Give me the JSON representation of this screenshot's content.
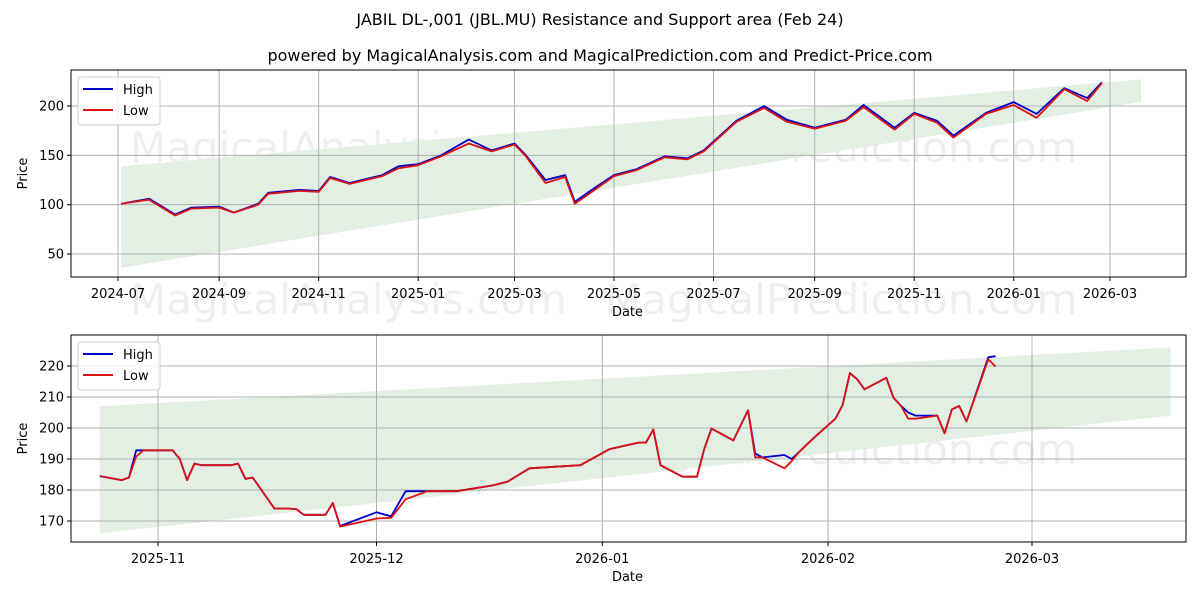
{
  "header": {
    "title": "JABIL DL-,001 (JBL.MU) Resistance and Support area (Feb 24)",
    "subtitle": "powered by MagicalAnalysis.com and MagicalPrediction.com and Predict-Price.com"
  },
  "watermarks": [
    "MagicalAnalysis.com",
    "MagicalPrediction.com"
  ],
  "colors": {
    "high": "#0000cc",
    "low": "#dd1111",
    "band": "#e3efe3",
    "grid": "#b0b0b0"
  },
  "chart_data": [
    {
      "type": "line",
      "title": "Full history",
      "xlabel": "Date",
      "ylabel": "Price",
      "ylim": [
        26,
        235
      ],
      "yticks": [
        50,
        100,
        150,
        200
      ],
      "xticks": [
        "2024-07",
        "2024-09",
        "2024-11",
        "2025-01",
        "2025-03",
        "2025-05",
        "2025-07",
        "2025-09",
        "2025-11",
        "2026-01",
        "2026-03"
      ],
      "grid": true,
      "legend": {
        "position": "upper left",
        "entries": [
          "High",
          "Low"
        ]
      },
      "band": {
        "start": {
          "date": "2024-07-03",
          "lower": 36,
          "upper": 139
        },
        "end": {
          "date": "2026-03-20",
          "lower": 204,
          "upper": 227
        }
      },
      "x": [
        "2024-07-03",
        "2024-07-20",
        "2024-08-05",
        "2024-08-15",
        "2024-09-01",
        "2024-09-10",
        "2024-09-25",
        "2024-10-01",
        "2024-10-20",
        "2024-11-01",
        "2024-11-08",
        "2024-11-20",
        "2024-12-10",
        "2024-12-20",
        "2025-01-01",
        "2025-01-15",
        "2025-02-01",
        "2025-02-15",
        "2025-03-01",
        "2025-03-08",
        "2025-03-20",
        "2025-04-01",
        "2025-04-07",
        "2025-04-20",
        "2025-05-01",
        "2025-05-15",
        "2025-06-01",
        "2025-06-15",
        "2025-06-25",
        "2025-07-15",
        "2025-08-01",
        "2025-08-15",
        "2025-09-01",
        "2025-09-20",
        "2025-10-01",
        "2025-10-20",
        "2025-11-01",
        "2025-11-15",
        "2025-11-25",
        "2025-12-15",
        "2026-01-01",
        "2026-01-15",
        "2026-02-01",
        "2026-02-15",
        "2026-02-24"
      ],
      "series": [
        {
          "name": "High",
          "values": [
            101,
            106,
            90,
            97,
            98,
            92,
            101,
            112,
            115,
            114,
            128,
            122,
            130,
            139,
            141,
            150,
            166,
            155,
            162,
            150,
            125,
            130,
            103,
            118,
            130,
            136,
            149,
            147,
            155,
            185,
            200,
            186,
            178,
            186,
            201,
            178,
            193,
            185,
            170,
            193,
            204,
            192,
            218,
            208,
            224
          ]
        },
        {
          "name": "Low",
          "values": [
            101,
            105,
            89,
            96,
            97,
            92,
            100,
            111,
            114,
            113,
            127,
            121,
            129,
            137,
            140,
            149,
            162,
            154,
            161,
            149,
            122,
            128,
            101,
            116,
            129,
            135,
            148,
            146,
            154,
            184,
            198,
            184,
            177,
            185,
            199,
            176,
            192,
            183,
            168,
            192,
            201,
            188,
            217,
            205,
            223
          ]
        }
      ]
    },
    {
      "type": "line",
      "title": "Recent zoom",
      "xlabel": "Date",
      "ylabel": "Price",
      "ylim": [
        163,
        230
      ],
      "yticks": [
        170,
        180,
        190,
        200,
        210,
        220
      ],
      "xticks": [
        "2025-11",
        "2025-12",
        "2026-01",
        "2026-02",
        "2026-03"
      ],
      "grid": true,
      "legend": {
        "position": "upper left",
        "entries": [
          "High",
          "Low"
        ]
      },
      "band": {
        "start": {
          "date": "2025-10-24",
          "lower": 166,
          "upper": 207
        },
        "end": {
          "date": "2026-03-20",
          "lower": 204,
          "upper": 226
        }
      },
      "x": [
        "2025-10-24",
        "2025-10-27",
        "2025-10-28",
        "2025-10-29",
        "2025-10-30",
        "2025-11-03",
        "2025-11-04",
        "2025-11-05",
        "2025-11-06",
        "2025-11-07",
        "2025-11-10",
        "2025-11-11",
        "2025-11-12",
        "2025-11-13",
        "2025-11-14",
        "2025-11-17",
        "2025-11-19",
        "2025-11-20",
        "2025-11-21",
        "2025-11-24",
        "2025-11-25",
        "2025-11-26",
        "2025-12-01",
        "2025-12-03",
        "2025-12-05",
        "2025-12-08",
        "2025-12-10",
        "2025-12-11",
        "2025-12-12",
        "2025-12-17",
        "2025-12-19",
        "2025-12-22",
        "2025-12-29",
        "2026-01-02",
        "2026-01-06",
        "2026-01-07",
        "2026-01-08",
        "2026-01-09",
        "2026-01-12",
        "2026-01-14",
        "2026-01-15",
        "2026-01-16",
        "2026-01-19",
        "2026-01-21",
        "2026-01-22",
        "2026-01-23",
        "2026-01-26",
        "2026-01-27",
        "2026-01-28",
        "2026-01-30",
        "2026-02-02",
        "2026-02-03",
        "2026-02-04",
        "2026-02-05",
        "2026-02-06",
        "2026-02-09",
        "2026-02-10",
        "2026-02-11",
        "2026-02-12",
        "2026-02-13",
        "2026-02-16",
        "2026-02-17",
        "2026-02-18",
        "2026-02-19",
        "2026-02-20",
        "2026-02-23",
        "2026-02-24"
      ],
      "series": [
        {
          "name": "High",
          "values": [
            184.5,
            183.2,
            184,
            192.8,
            192.8,
            192.8,
            190,
            183.2,
            188.5,
            188,
            188,
            188,
            188.5,
            183.6,
            184,
            174,
            174,
            173.8,
            172,
            172,
            175.8,
            168.4,
            172.8,
            171.5,
            179.6,
            179.6,
            179.6,
            179.6,
            179.6,
            181.5,
            182.7,
            187,
            188,
            193.2,
            195.3,
            195.3,
            199.5,
            188,
            184.3,
            184.3,
            193.3,
            199.8,
            196,
            205.7,
            191.8,
            190.5,
            191.3,
            190,
            192.2,
            196.7,
            203,
            207.4,
            217.7,
            215.7,
            212.5,
            216.2,
            209.7,
            207.2,
            205,
            204,
            204,
            198.3,
            206,
            207.1,
            202.1,
            222.8,
            223.2
          ]
        },
        {
          "name": "Low",
          "values": [
            184.5,
            183.2,
            184,
            190.8,
            192.8,
            192.8,
            190,
            183.2,
            188.5,
            188,
            188,
            188,
            188.5,
            183.6,
            184,
            174,
            174,
            173.8,
            172,
            172,
            175.8,
            168.2,
            170.8,
            171,
            177,
            179.6,
            179.6,
            179.6,
            179.6,
            181.5,
            182.7,
            187,
            188,
            193.2,
            195.3,
            195.3,
            199.5,
            188,
            184.3,
            184.3,
            193.3,
            199.8,
            196,
            205.7,
            190.5,
            190.5,
            187,
            189.3,
            192.2,
            196.7,
            203,
            207.4,
            217.7,
            215.7,
            212.5,
            216.2,
            209.7,
            207.2,
            203,
            203,
            204,
            198.3,
            206,
            207.1,
            202.1,
            222.2,
            219.8
          ]
        }
      ]
    }
  ]
}
